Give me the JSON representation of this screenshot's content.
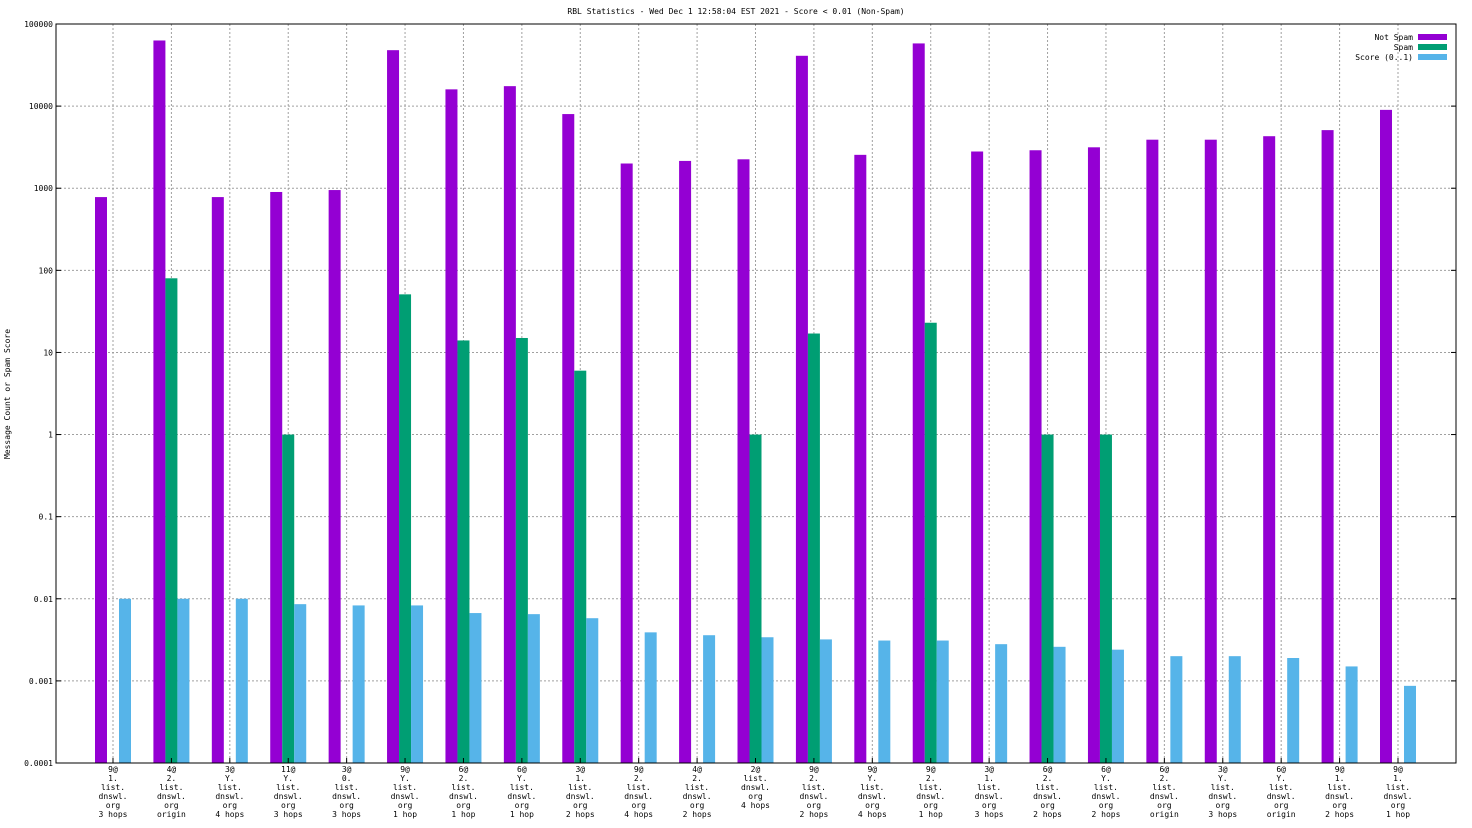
{
  "chart_data": {
    "type": "bar",
    "title": "RBL Statistics - Wed Dec  1 12:58:04 EST 2021 - Score < 0.01 (Non-Spam)",
    "xlabel": "",
    "ylabel": "Message Count or Spam Score",
    "yscale": "log",
    "ylim": [
      0.0001,
      100000
    ],
    "yticks": [
      "0.0001",
      "0.001",
      "0.01",
      "0.1",
      "1",
      "10",
      "100",
      "1000",
      "10000",
      "100000"
    ],
    "grid": true,
    "legend_position": "top-right",
    "categories": [
      [
        "9@",
        "1.",
        "list.",
        "dnswl.",
        "org",
        "3 hops"
      ],
      [
        "4@",
        "2.",
        "list.",
        "dnswl.",
        "org",
        "origin"
      ],
      [
        "3@",
        "Y.",
        "list.",
        "dnswl.",
        "org",
        "4 hops"
      ],
      [
        "11@",
        "Y.",
        "list.",
        "dnswl.",
        "org",
        "3 hops"
      ],
      [
        "3@",
        "0.",
        "list.",
        "dnswl.",
        "org",
        "3 hops"
      ],
      [
        "9@",
        "Y.",
        "list.",
        "dnswl.",
        "org",
        "1 hop"
      ],
      [
        "6@",
        "2.",
        "list.",
        "dnswl.",
        "org",
        "1 hop"
      ],
      [
        "6@",
        "Y.",
        "list.",
        "dnswl.",
        "org",
        "1 hop"
      ],
      [
        "3@",
        "1.",
        "list.",
        "dnswl.",
        "org",
        "2 hops"
      ],
      [
        "9@",
        "2.",
        "list.",
        "dnswl.",
        "org",
        "4 hops"
      ],
      [
        "4@",
        "2.",
        "list.",
        "dnswl.",
        "org",
        "2 hops"
      ],
      [
        "2@",
        "list.",
        "dnswl.",
        "org",
        "4 hops"
      ],
      [
        "9@",
        "2.",
        "list.",
        "dnswl.",
        "org",
        "2 hops"
      ],
      [
        "9@",
        "Y.",
        "list.",
        "dnswl.",
        "org",
        "4 hops"
      ],
      [
        "9@",
        "2.",
        "list.",
        "dnswl.",
        "org",
        "1 hop"
      ],
      [
        "3@",
        "1.",
        "list.",
        "dnswl.",
        "org",
        "3 hops"
      ],
      [
        "6@",
        "2.",
        "list.",
        "dnswl.",
        "org",
        "2 hops"
      ],
      [
        "6@",
        "Y.",
        "list.",
        "dnswl.",
        "org",
        "2 hops"
      ],
      [
        "6@",
        "2.",
        "list.",
        "dnswl.",
        "org",
        "origin"
      ],
      [
        "3@",
        "Y.",
        "list.",
        "dnswl.",
        "org",
        "3 hops"
      ],
      [
        "6@",
        "Y.",
        "list.",
        "dnswl.",
        "org",
        "origin"
      ],
      [
        "9@",
        "1.",
        "list.",
        "dnswl.",
        "org",
        "2 hops"
      ],
      [
        "9@",
        "1.",
        "list.",
        "dnswl.",
        "org",
        "1 hop"
      ]
    ],
    "series": [
      {
        "name": "Not Spam",
        "color": "#9400d3",
        "values": [
          780,
          63000,
          780,
          900,
          950,
          48000,
          16000,
          17500,
          8000,
          2000,
          2150,
          2250,
          41000,
          2550,
          58000,
          2800,
          2900,
          3150,
          3900,
          3900,
          4300,
          5100,
          9000
        ]
      },
      {
        "name": "Spam",
        "color": "#009e73",
        "values": [
          0,
          80,
          0,
          1,
          0,
          51,
          14,
          15,
          6,
          0,
          0,
          1,
          17,
          0,
          23,
          0,
          1,
          1,
          0,
          0,
          0,
          0,
          0
        ]
      },
      {
        "name": "Score (0..1)",
        "color": "#56b4e9",
        "values": [
          0.01,
          0.01,
          0.01,
          0.0086,
          0.0083,
          0.0083,
          0.0067,
          0.0065,
          0.0058,
          0.0039,
          0.0036,
          0.0034,
          0.0032,
          0.0031,
          0.0031,
          0.0028,
          0.0026,
          0.0024,
          0.002,
          0.002,
          0.0019,
          0.0015,
          0.00087
        ]
      }
    ]
  }
}
